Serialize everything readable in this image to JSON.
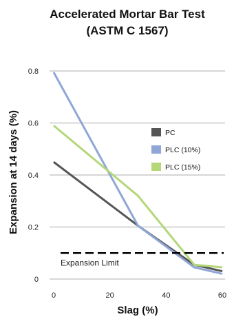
{
  "chart_data": {
    "type": "line",
    "title": [
      "Accelerated Mortar Bar Test",
      "(ASTM C 1567)"
    ],
    "xlabel": "Slag (%)",
    "ylabel": "Expansion at 14 days (%)",
    "xlim": [
      0,
      60
    ],
    "ylim": [
      0,
      0.8
    ],
    "x_ticks": [
      0,
      20,
      40,
      60
    ],
    "y_ticks": [
      0,
      0.2,
      0.4,
      0.6,
      0.8
    ],
    "x_tick_labels": [
      "0",
      "20",
      "40",
      "60"
    ],
    "y_tick_labels": [
      "0",
      "0.2",
      "0.4",
      "0.6",
      "0.8"
    ],
    "grid": "horizontal",
    "legend_position": "right",
    "series": [
      {
        "name": "PC",
        "color": "#555555",
        "x": [
          0,
          30,
          50,
          60
        ],
        "y": [
          0.45,
          0.205,
          0.055,
          0.03
        ]
      },
      {
        "name": "PLC (10%)",
        "color": "#8fa6d6",
        "x": [
          0,
          30,
          50,
          60
        ],
        "y": [
          0.795,
          0.205,
          0.045,
          0.02
        ]
      },
      {
        "name": "PLC (15%)",
        "color": "#b4d77a",
        "x": [
          0,
          30,
          50,
          60
        ],
        "y": [
          0.59,
          0.32,
          0.055,
          0.045
        ]
      }
    ],
    "reference_line": {
      "label": "Expansion Limit",
      "y": 0.1,
      "style": "dashed",
      "color": "#000000"
    }
  }
}
